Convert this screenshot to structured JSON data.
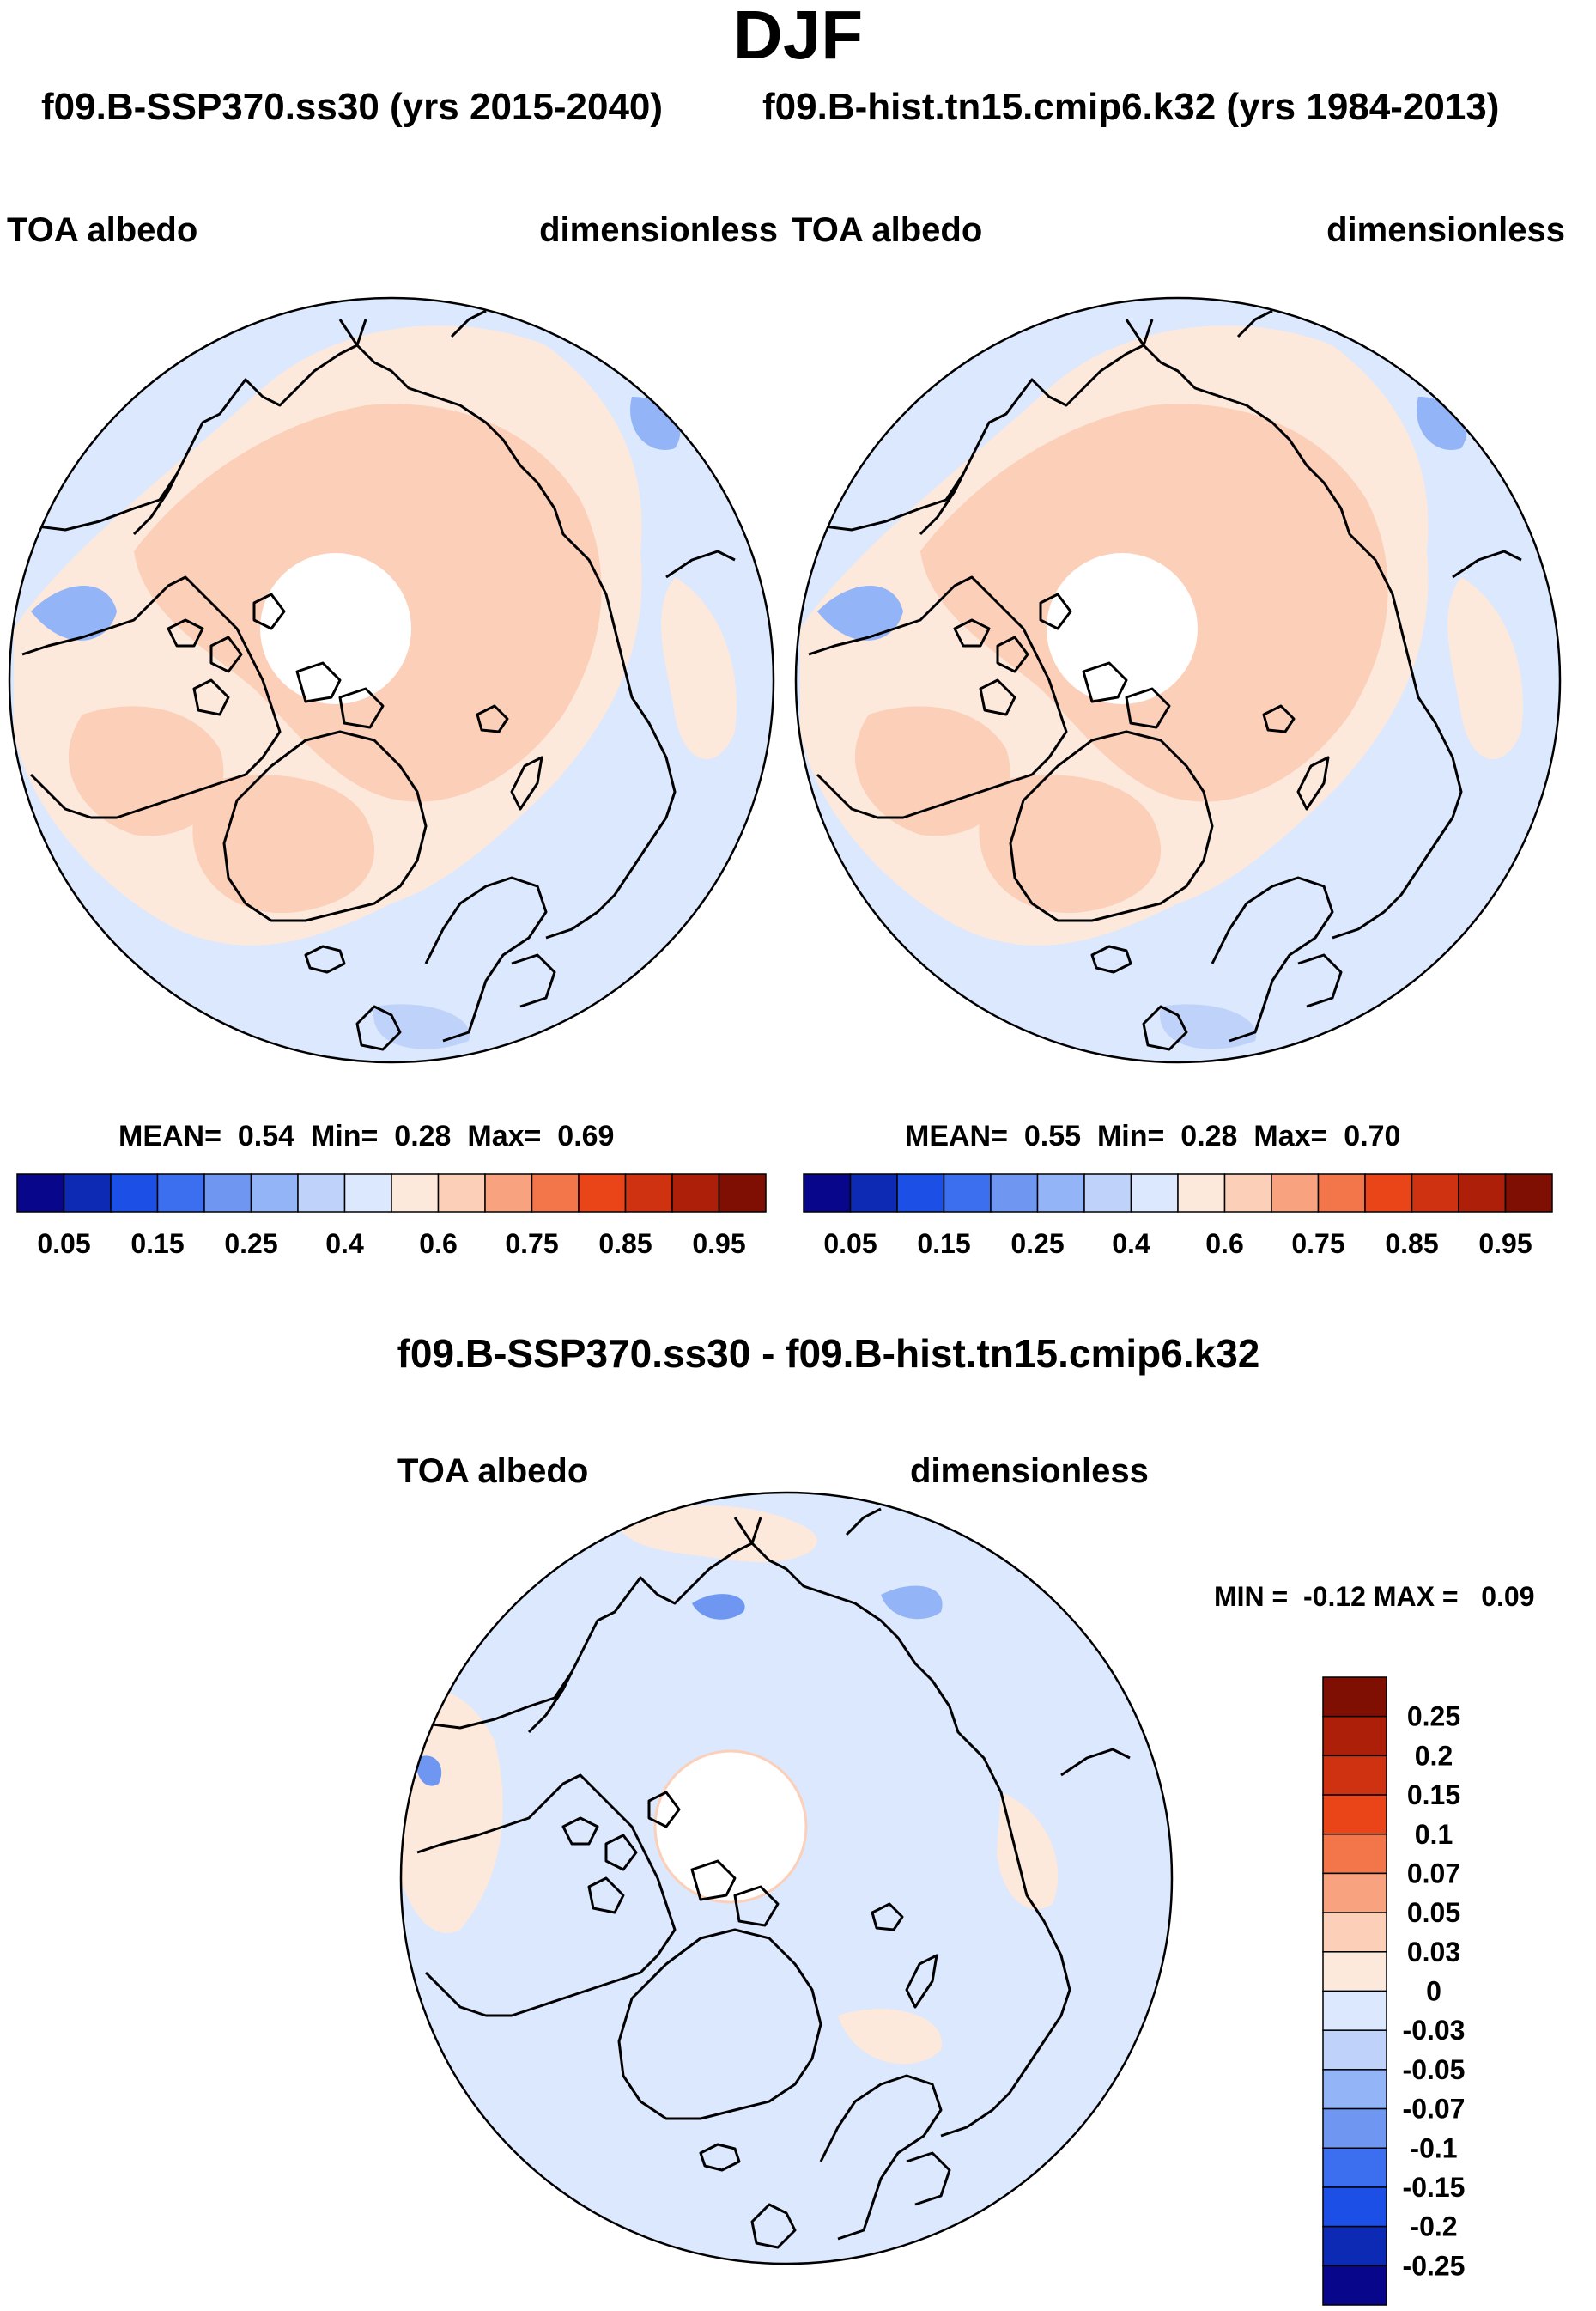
{
  "title": "DJF",
  "subtitle_left": "f09.B-SSP370.ss30 (yrs 2015-2040)",
  "subtitle_right": "f09.B-hist.tn15.cmip6.k32 (yrs 1984-2013)",
  "diff_title": "f09.B-SSP370.ss30 - f09.B-hist.tn15.cmip6.k32",
  "panels": [
    {
      "variable": "TOA albedo",
      "units": "dimensionless",
      "mean_label": "MEAN=",
      "mean": "0.54",
      "min_label": "Min=",
      "min": "0.28",
      "max_label": "Max=",
      "max": "0.69"
    },
    {
      "variable": "TOA albedo",
      "units": "dimensionless",
      "mean_label": "MEAN=",
      "mean": "0.55",
      "min_label": "Min=",
      "min": "0.28",
      "max_label": "Max=",
      "max": "0.70"
    }
  ],
  "diff_panel": {
    "variable": "TOA albedo",
    "units": "dimensionless",
    "minmax": "MIN =  -0.12 MAX =   0.09"
  },
  "colorbar_top": {
    "colors": [
      "#08068a",
      "#0d2ab4",
      "#1b4fe6",
      "#3b6ff0",
      "#6f97f2",
      "#93b4f6",
      "#bfd3fa",
      "#dbe8fd",
      "#fde9dc",
      "#fccfb9",
      "#f8a27f",
      "#f3764a",
      "#e94518",
      "#cf3210",
      "#ad1f08",
      "#7f0e03"
    ],
    "labels": [
      "0.05",
      "0.15",
      "0.25",
      "0.4",
      "0.6",
      "0.75",
      "0.85",
      "0.95"
    ]
  },
  "colorbar_diff": {
    "colors": [
      "#7f0e03",
      "#ad1f08",
      "#cf3210",
      "#e94518",
      "#f3764a",
      "#f8a27f",
      "#fccfb9",
      "#fde9dc",
      "#dbe8fd",
      "#bfd3fa",
      "#93b4f6",
      "#6f97f2",
      "#3b6ff0",
      "#1b4fe6",
      "#0d2ab4",
      "#08068a"
    ],
    "labels": [
      "0.25",
      "0.2",
      "0.15",
      "0.1",
      "0.07",
      "0.05",
      "0.03",
      "0",
      "-0.03",
      "-0.05",
      "-0.07",
      "-0.1",
      "-0.15",
      "-0.2",
      "-0.25"
    ]
  }
}
